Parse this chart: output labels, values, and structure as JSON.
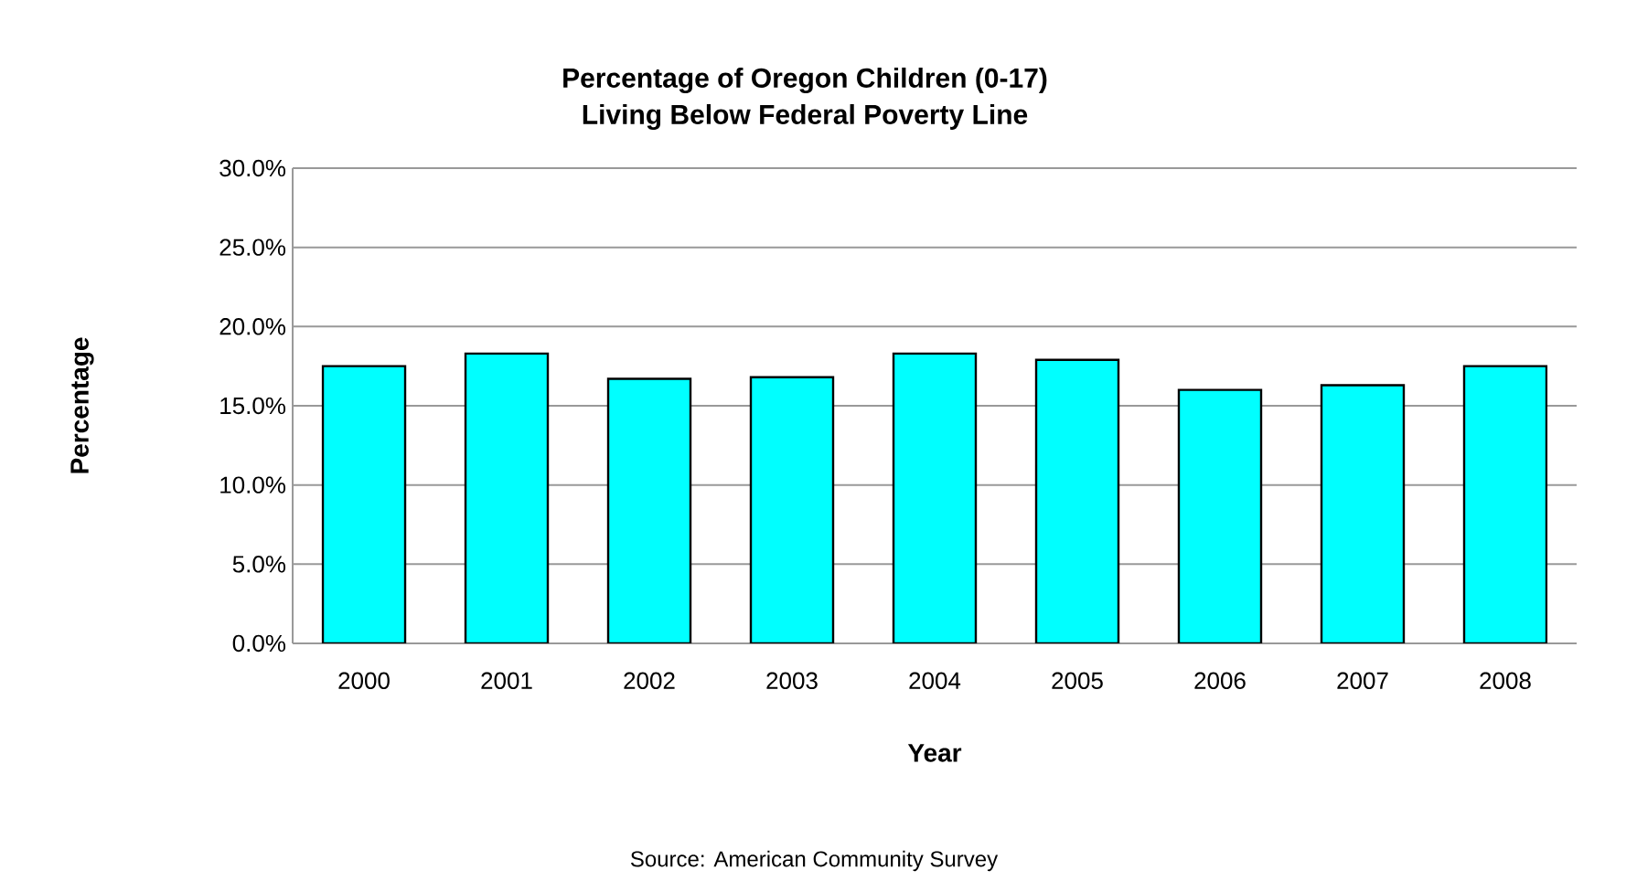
{
  "chart_data": {
    "type": "bar",
    "title": "Percentage of Oregon Children (0-17)\nLiving Below Federal Poverty Line",
    "xlabel": "Year",
    "ylabel": "Percentage",
    "categories": [
      "2000",
      "2001",
      "2002",
      "2003",
      "2004",
      "2005",
      "2006",
      "2007",
      "2008"
    ],
    "values": [
      17.5,
      18.3,
      16.7,
      16.8,
      18.3,
      17.9,
      16.0,
      16.3,
      17.5
    ],
    "color": "#00ffff",
    "ylim": [
      0,
      30
    ],
    "yticks": [
      {
        "value": 0,
        "label": "0.0%"
      },
      {
        "value": 5,
        "label": "5.0%"
      },
      {
        "value": 10,
        "label": "10.0%"
      },
      {
        "value": 15,
        "label": "15.0%"
      },
      {
        "value": 20,
        "label": "20.0%"
      },
      {
        "value": 25,
        "label": "25.0%"
      },
      {
        "value": 30,
        "label": "30.0%"
      }
    ],
    "grid": "y",
    "annotations": [
      "Source: American Community Survey"
    ]
  }
}
